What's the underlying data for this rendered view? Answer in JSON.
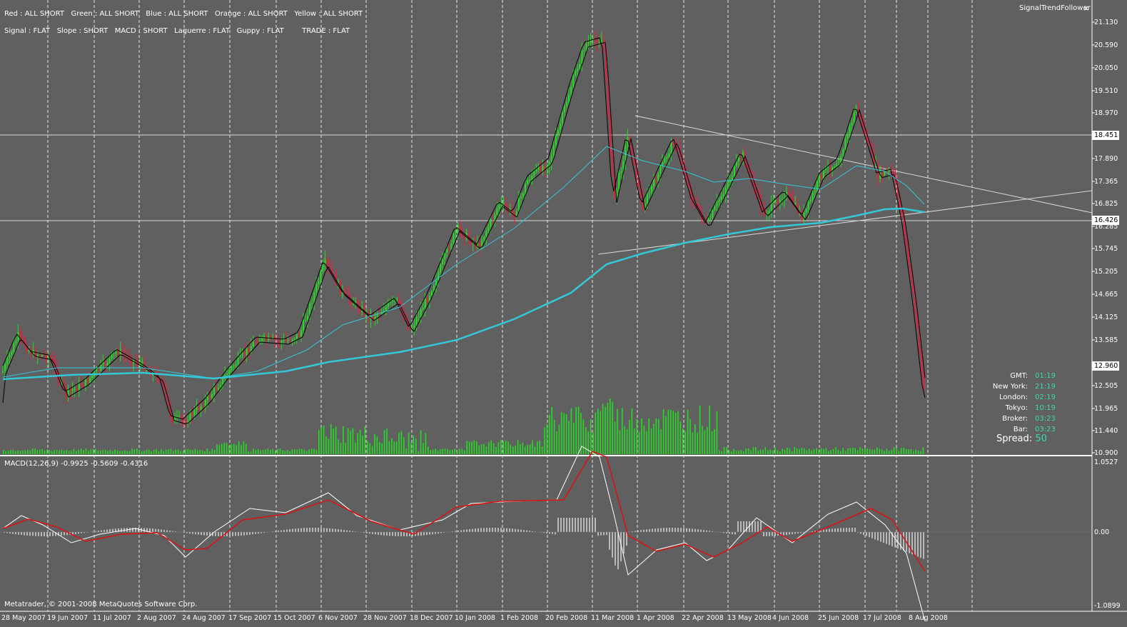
{
  "header": {
    "line1": "Red : ALL SHORT   Green : ALL SHORT   Blue : ALL SHORT   Orange : ALL SHORT   Yellow : ALL SHORT",
    "line2": "Signal : FLAT   Slope : SHORT   MACD : SHORT   Laguerre : FLAT   Guppy : FLAT        TRADE : FLAT"
  },
  "indicator_window": {
    "title": "SignalTrendFollower",
    "close_glyph": "×"
  },
  "price_axis": {
    "labels": [
      "21.130",
      "20.590",
      "20.050",
      "19.510",
      "18.970",
      "17.890",
      "17.365",
      "16.825",
      "16.285",
      "15.745",
      "15.205",
      "14.665",
      "14.125",
      "13.585",
      "12.505",
      "11.965",
      "11.440",
      "10.900"
    ],
    "hline_high": "18.451",
    "hline_low": "16.426",
    "current_price": "12.960"
  },
  "macd": {
    "label": "MACD(12,26,9) -0.9925 -0.5609 -0.4316",
    "axis_labels": [
      "1.0527",
      "0.00",
      "-1.0899"
    ]
  },
  "dates": [
    "28 May 2007",
    "19 Jun 2007",
    "11 Jul 2007",
    "2 Aug 2007",
    "24 Aug 2007",
    "17 Sep 2007",
    "15 Oct 2007",
    "6 Nov 2007",
    "28 Nov 2007",
    "18 Dec 2007",
    "10 Jan 2008",
    "1 Feb 2008",
    "20 Feb 2008",
    "11 Mar 2008",
    "1 Apr 2008",
    "22 Apr 2008",
    "13 May 2008",
    "4 Jun 2008",
    "25 Jun 2008",
    "17 Jul 2008",
    "8 Aug 2008"
  ],
  "clock": {
    "rows": [
      {
        "k": "GMT:",
        "v": "01:19"
      },
      {
        "k": "New York:",
        "v": "21:19"
      },
      {
        "k": "London:",
        "v": "02:19"
      },
      {
        "k": "Tokyo:",
        "v": "10:19"
      },
      {
        "k": "Broker:",
        "v": "03:23"
      },
      {
        "k": "Bar:",
        "v": "03:23"
      }
    ],
    "spread_label": "Spread:",
    "spread_value": "50"
  },
  "copyright": "Metatrader, © 2001-2008 MetaQuotes Software Corp.",
  "colors": {
    "bull": "#22dd22",
    "bear": "#dd2244",
    "ma_fast": "#000000",
    "ma_slow": "#33c8d8",
    "macd_line": "#ffffff",
    "signal_line": "#dd1111",
    "volume": "#22dd22",
    "clock_value": "#3fd8b0"
  }
}
